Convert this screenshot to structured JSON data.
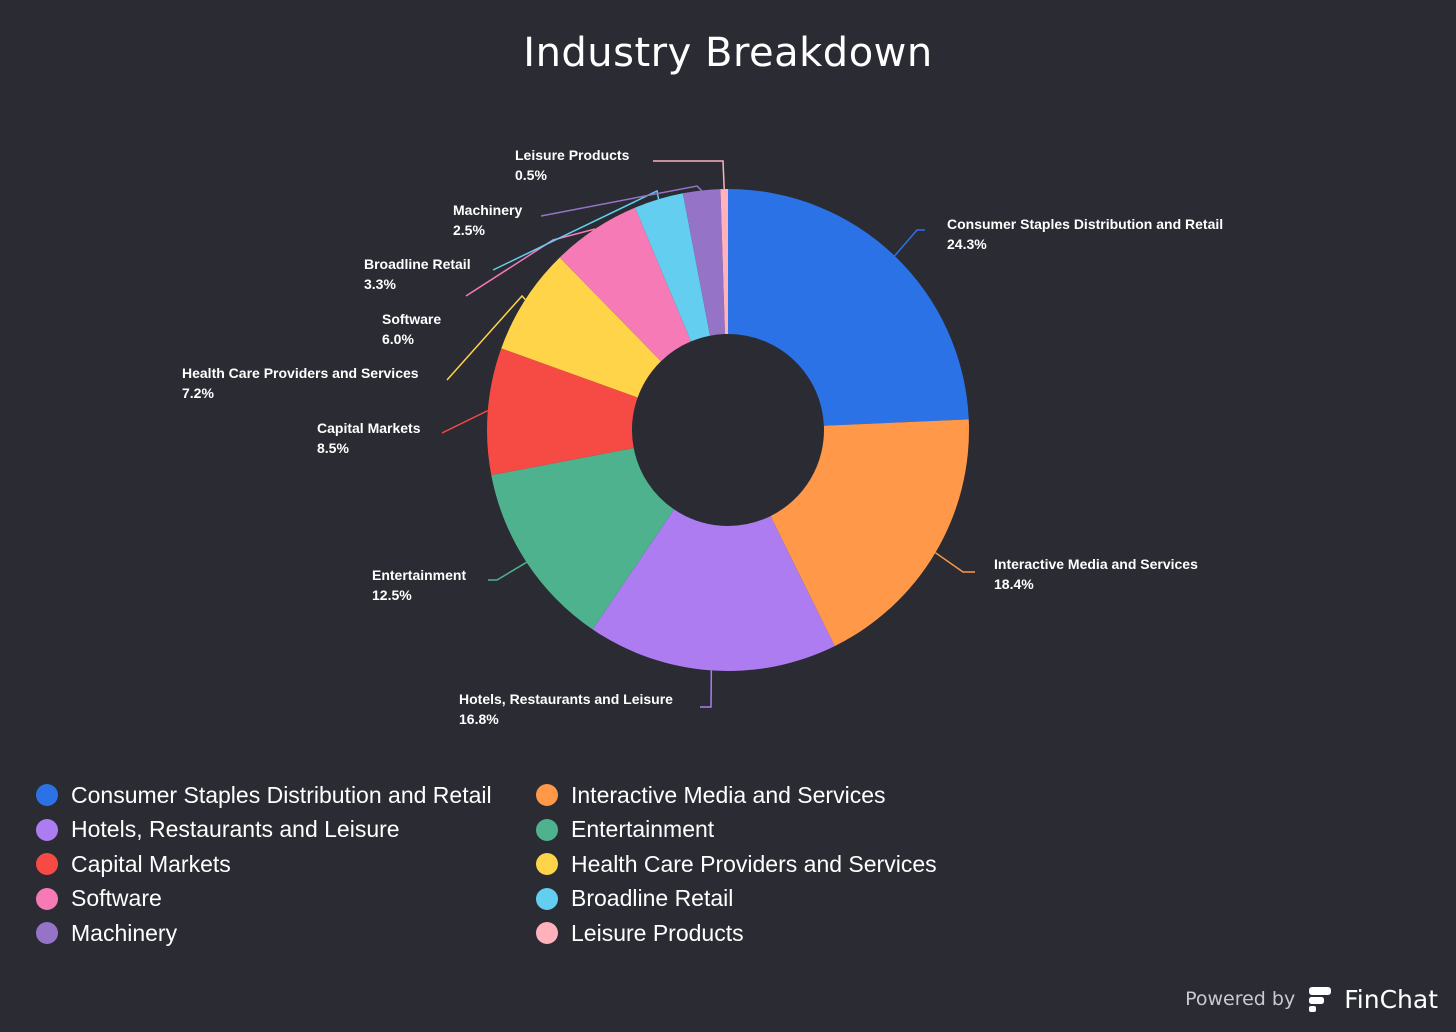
{
  "chart_data": {
    "type": "pie",
    "title": "Industry Breakdown",
    "donut": true,
    "legend_placement": "bottom-left",
    "slices": [
      {
        "label": "Consumer Staples Distribution and Retail",
        "value": 24.3,
        "value_label": "24.3%",
        "color": "#2b72e6"
      },
      {
        "label": "Interactive Media and Services",
        "value": 18.4,
        "value_label": "18.4%",
        "color": "#ff9848"
      },
      {
        "label": "Hotels, Restaurants and Leisure",
        "value": 16.8,
        "value_label": "16.8%",
        "color": "#ac7cf0"
      },
      {
        "label": "Entertainment",
        "value": 12.5,
        "value_label": "12.5%",
        "color": "#4fb28e"
      },
      {
        "label": "Capital Markets",
        "value": 8.5,
        "value_label": "8.5%",
        "color": "#f64a44"
      },
      {
        "label": "Health Care Providers and Services",
        "value": 7.2,
        "value_label": "7.2%",
        "color": "#ffd449"
      },
      {
        "label": "Software",
        "value": 6.0,
        "value_label": "6.0%",
        "color": "#f67ab6"
      },
      {
        "label": "Broadline Retail",
        "value": 3.3,
        "value_label": "3.3%",
        "color": "#63cef0"
      },
      {
        "label": "Machinery",
        "value": 2.5,
        "value_label": "2.5%",
        "color": "#9574c8"
      },
      {
        "label": "Leisure Products",
        "value": 0.5,
        "value_label": "0.5%",
        "color": "#ffb2bc"
      }
    ]
  },
  "footer": {
    "powered_by": "Powered by",
    "brand": "FinChat"
  }
}
